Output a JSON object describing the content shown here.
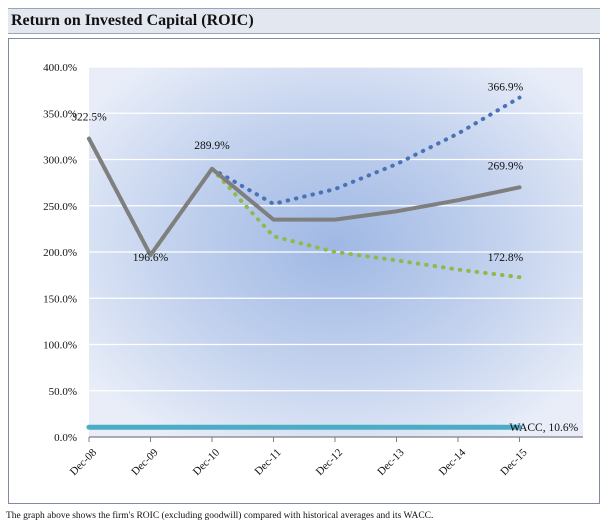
{
  "header": {
    "title": "Return on Invested Capital (ROIC)"
  },
  "footer": {
    "caption": "The graph above shows the firm's ROIC (excluding goodwill) compared with historical averages and its WACC."
  },
  "chart_data": {
    "type": "line",
    "title": "Return on Invested Capital (ROIC)",
    "xlabel": "",
    "ylabel": "",
    "categories": [
      "Dec-08",
      "Dec-09",
      "Dec-10",
      "Dec-11",
      "Dec-12",
      "Dec-13",
      "Dec-14",
      "Dec-15"
    ],
    "yticks": [
      "0.0%",
      "50.0%",
      "100.0%",
      "150.0%",
      "200.0%",
      "250.0%",
      "300.0%",
      "350.0%",
      "400.0%"
    ],
    "ylim": [
      0,
      400
    ],
    "grid": true,
    "series": [
      {
        "style": "dotted",
        "color": "#4a72b8",
        "values": [
          322.5,
          196.6,
          289.9,
          252.0,
          268.0,
          295.0,
          328.0,
          366.9
        ]
      },
      {
        "style": "dotted",
        "color": "#92b84a",
        "values": [
          322.5,
          196.6,
          289.9,
          217.0,
          200.0,
          191.0,
          181.0,
          172.8
        ]
      },
      {
        "style": "solid",
        "color": "#7f7f7f",
        "values": [
          322.5,
          196.6,
          289.9,
          235.0,
          235.0,
          244.0,
          256.0,
          269.9
        ]
      },
      {
        "style": "solid",
        "color": "#4bacc6",
        "values": [
          10.6,
          10.6,
          10.6,
          10.6,
          10.6,
          10.6,
          10.6,
          10.6
        ]
      }
    ],
    "annotations": [
      {
        "text": "322.5%",
        "category": "Dec-08",
        "value": 322.5
      },
      {
        "text": "196.6%",
        "category": "Dec-09",
        "value": 196.6
      },
      {
        "text": "289.9%",
        "category": "Dec-10",
        "value": 289.9
      },
      {
        "text": "366.9%",
        "category": "Dec-15",
        "value": 366.9
      },
      {
        "text": "269.9%",
        "category": "Dec-15",
        "value": 269.9
      },
      {
        "text": "172.8%",
        "category": "Dec-15",
        "value": 172.8
      },
      {
        "text": "WACC, 10.6%",
        "category": "Dec-15",
        "value": 10.6
      }
    ]
  }
}
